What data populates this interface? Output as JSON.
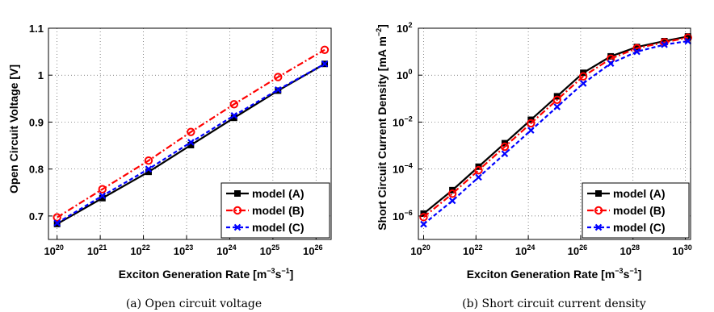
{
  "colors": {
    "A": "#000000",
    "B": "#ff0000",
    "C": "#0000ff"
  },
  "legend": [
    "model (A)",
    "model (B)",
    "model (C)"
  ],
  "chart_data": [
    {
      "type": "line",
      "caption": "(a) Open circuit voltage",
      "xlabel": "Exciton Generation Rate [m",
      "xlabel_sup1": "−3",
      "xlabel_mid": "s",
      "xlabel_sup2": "−1",
      "xlabel_end": "]",
      "ylabel": "Open Circuit Voltage [V]",
      "xscale": "log",
      "xlim_exp": [
        19.8,
        26.35
      ],
      "ylim": [
        0.65,
        1.1
      ],
      "x_ticks_exp": [
        20,
        21,
        22,
        23,
        24,
        25,
        26
      ],
      "y_ticks": [
        "0.7",
        "0.8",
        "0.9",
        "1",
        "1.1"
      ],
      "y_tick_values": [
        0.7,
        0.8,
        0.9,
        1.0,
        1.1
      ],
      "legend_position": "bottom-right",
      "grid": true,
      "series": [
        {
          "name": "model (A)",
          "x_exp": [
            20.0,
            21.05,
            22.12,
            23.1,
            24.1,
            25.12,
            26.2
          ],
          "y": [
            0.683,
            0.738,
            0.794,
            0.851,
            0.909,
            0.967,
            1.024
          ]
        },
        {
          "name": "model (B)",
          "x_exp": [
            20.0,
            21.05,
            22.12,
            23.1,
            24.1,
            25.12,
            26.2
          ],
          "y": [
            0.697,
            0.757,
            0.818,
            0.879,
            0.938,
            0.996,
            1.054
          ]
        },
        {
          "name": "model (C)",
          "x_exp": [
            20.0,
            21.05,
            22.12,
            23.1,
            24.1,
            25.12,
            26.2
          ],
          "y": [
            0.685,
            0.743,
            0.8,
            0.857,
            0.914,
            0.969,
            1.024
          ]
        }
      ]
    },
    {
      "type": "line",
      "caption": "(b) Short circuit current density",
      "xlabel": "Exciton Generation Rate [m",
      "xlabel_sup1": "−3",
      "xlabel_mid": "s",
      "xlabel_sup2": "−1",
      "xlabel_end": "]",
      "ylabel": "Short Circuit Current Density [mA m",
      "ylabel_sup": "−2",
      "ylabel_end": "]",
      "xscale": "log",
      "yscale": "log",
      "xlim_exp": [
        19.8,
        30.2
      ],
      "ylim_exp": [
        -7,
        2
      ],
      "x_ticks_exp": [
        20,
        22,
        24,
        26,
        28,
        30
      ],
      "y_ticks_exp": [
        -6,
        -4,
        -2,
        0,
        2
      ],
      "legend_position": "bottom-right",
      "grid": true,
      "series": [
        {
          "name": "model (A)",
          "x_exp": [
            20.0,
            21.1,
            22.1,
            23.1,
            24.1,
            25.1,
            26.1,
            27.15,
            28.15,
            29.2,
            30.1
          ],
          "y_exp": [
            -5.9,
            -4.9,
            -3.9,
            -2.9,
            -1.9,
            -0.9,
            0.1,
            0.8,
            1.2,
            1.45,
            1.65
          ]
        },
        {
          "name": "model (B)",
          "x_exp": [
            20.0,
            21.1,
            22.1,
            23.1,
            24.1,
            25.1,
            26.1,
            27.15,
            28.15,
            29.2,
            30.1
          ],
          "y_exp": [
            -6.05,
            -5.05,
            -4.05,
            -3.05,
            -2.05,
            -1.05,
            -0.05,
            0.7,
            1.15,
            1.4,
            1.6
          ]
        },
        {
          "name": "model (C)",
          "x_exp": [
            20.0,
            21.1,
            22.1,
            23.1,
            24.1,
            25.1,
            26.1,
            27.15,
            28.15,
            29.2,
            30.1
          ],
          "y_exp": [
            -6.35,
            -5.35,
            -4.35,
            -3.35,
            -2.35,
            -1.35,
            -0.35,
            0.5,
            1.0,
            1.3,
            1.45
          ]
        }
      ]
    }
  ]
}
